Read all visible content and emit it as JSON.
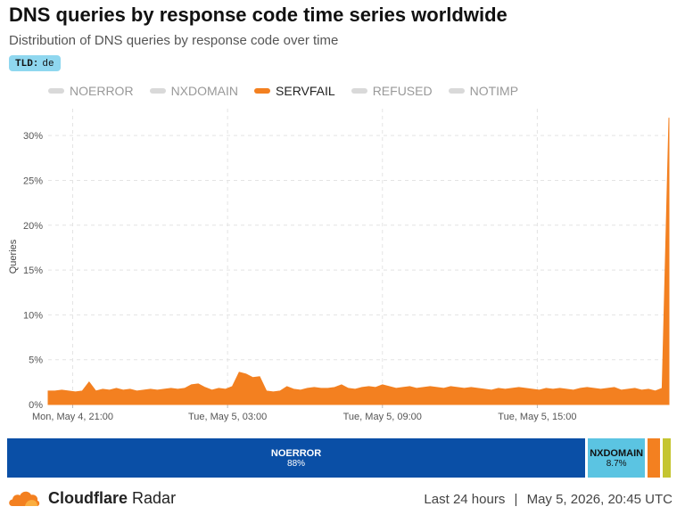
{
  "header": {
    "title": "DNS queries by response code time series worldwide",
    "subtitle": "Distribution of DNS queries by response code over time",
    "badge_key": "TLD:",
    "badge_value": "de"
  },
  "legend": [
    {
      "label": "NOERROR",
      "active": false
    },
    {
      "label": "NXDOMAIN",
      "active": false
    },
    {
      "label": "SERVFAIL",
      "active": true
    },
    {
      "label": "REFUSED",
      "active": false
    },
    {
      "label": "NOTIMP",
      "active": false
    }
  ],
  "colors": {
    "servfail": "#f38020",
    "noerror": "#0a4fa6",
    "nxdomain": "#5bc4e2",
    "refused": "#f38020",
    "notimp": "#c5c531"
  },
  "chart_data": {
    "type": "area",
    "ylabel": "Queries",
    "ylim": [
      0,
      33
    ],
    "yticks": [
      "0%",
      "5%",
      "10%",
      "15%",
      "20%",
      "25%",
      "30%"
    ],
    "ytick_values": [
      0,
      5,
      10,
      15,
      20,
      25,
      30
    ],
    "xticks": [
      "Mon, May 4, 21:00",
      "Tue, May 5, 03:00",
      "Tue, May 5, 09:00",
      "Tue, May 5, 15:00"
    ],
    "xtick_positions": [
      0.9,
      6.9,
      12.9,
      18.9
    ],
    "x_range_hours": [
      -0.05,
      24
    ],
    "series": [
      {
        "name": "SERVFAIL",
        "color": "#f38020",
        "values": [
          1.5,
          1.5,
          1.6,
          1.5,
          1.4,
          1.5,
          2.5,
          1.5,
          1.7,
          1.6,
          1.8,
          1.6,
          1.7,
          1.5,
          1.6,
          1.7,
          1.6,
          1.7,
          1.8,
          1.7,
          1.8,
          2.2,
          2.3,
          1.9,
          1.6,
          1.8,
          1.7,
          2.0,
          3.6,
          3.4,
          3.0,
          3.1,
          1.5,
          1.4,
          1.5,
          2.0,
          1.7,
          1.6,
          1.8,
          1.9,
          1.8,
          1.8,
          1.9,
          2.2,
          1.8,
          1.7,
          1.9,
          2.0,
          1.9,
          2.2,
          2.0,
          1.8,
          1.9,
          2.0,
          1.8,
          1.9,
          2.0,
          1.9,
          1.8,
          2.0,
          1.9,
          1.8,
          1.9,
          1.8,
          1.7,
          1.6,
          1.8,
          1.7,
          1.8,
          1.9,
          1.8,
          1.7,
          1.6,
          1.8,
          1.7,
          1.8,
          1.7,
          1.6,
          1.8,
          1.9,
          1.8,
          1.7,
          1.8,
          1.9,
          1.6,
          1.7,
          1.8,
          1.6,
          1.7,
          1.5,
          1.8,
          32.0
        ]
      }
    ]
  },
  "summary_bar": [
    {
      "key": "noerror",
      "label": "NOERROR",
      "value": "88%",
      "share": 88.0
    },
    {
      "key": "nxdomain",
      "label": "NXDOMAIN",
      "value": "8.7%",
      "share": 8.7
    },
    {
      "key": "refused",
      "label": "",
      "value": "",
      "share": 1.9
    },
    {
      "key": "notimp",
      "label": "",
      "value": "",
      "share": 1.2
    }
  ],
  "footer": {
    "brand_bold": "Cloudflare",
    "brand_rest": "Radar",
    "period": "Last 24 hours",
    "separator": "|",
    "timestamp": "May 5, 2026, 20:45 UTC"
  }
}
